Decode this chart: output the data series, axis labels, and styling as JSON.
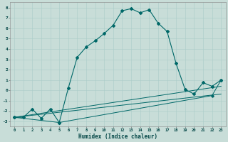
{
  "title": "",
  "xlabel": "Humidex (Indice chaleur)",
  "background_color": "#c8ddd8",
  "grid_color": "#aaccc8",
  "line_color": "#006868",
  "xlim": [
    -0.5,
    23.5
  ],
  "ylim": [
    -3.5,
    8.5
  ],
  "xticks": [
    0,
    1,
    2,
    3,
    4,
    5,
    6,
    7,
    8,
    9,
    10,
    11,
    12,
    13,
    14,
    15,
    16,
    17,
    18,
    19,
    20,
    21,
    22,
    23
  ],
  "yticks": [
    -3,
    -2,
    -1,
    0,
    1,
    2,
    3,
    4,
    5,
    6,
    7,
    8
  ],
  "curve1_x": [
    0,
    1,
    2,
    3,
    4,
    5,
    6,
    7,
    8,
    9,
    10,
    11,
    12,
    13,
    14,
    15,
    16,
    17,
    18,
    19,
    20,
    21,
    22,
    23
  ],
  "curve1_y": [
    -2.6,
    -2.6,
    -1.8,
    -2.7,
    -1.8,
    -3.1,
    0.2,
    3.2,
    4.2,
    4.8,
    5.5,
    6.3,
    7.7,
    7.9,
    7.5,
    7.8,
    6.5,
    5.7,
    2.6,
    0.1,
    -0.35,
    0.75,
    0.4,
    1.0
  ],
  "curve2_x": [
    0,
    5,
    22,
    23
  ],
  "curve2_y": [
    -2.6,
    -3.1,
    -0.5,
    1.0
  ],
  "curve3_x": [
    0,
    23
  ],
  "curve3_y": [
    -2.6,
    -0.35
  ],
  "curve4_x": [
    0,
    23
  ],
  "curve4_y": [
    -2.6,
    0.4
  ]
}
